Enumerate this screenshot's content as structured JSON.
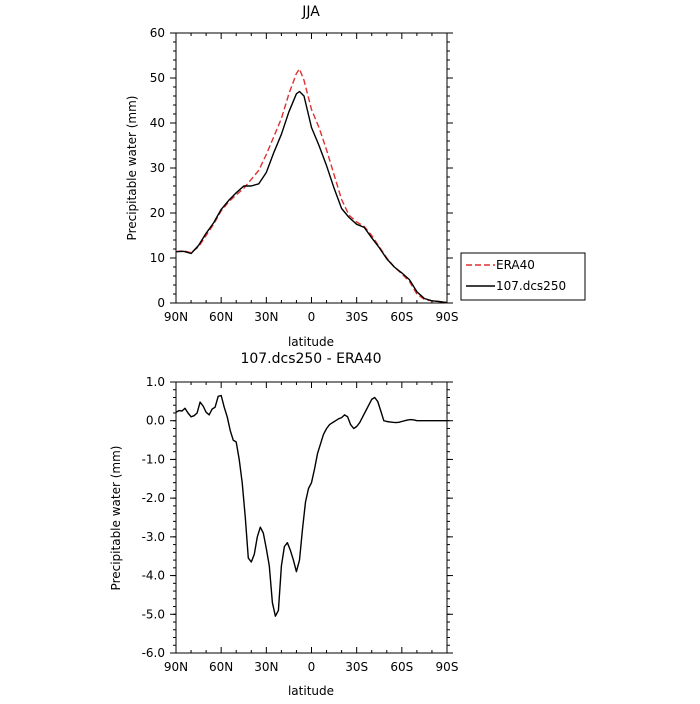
{
  "chart_data": [
    {
      "type": "line",
      "title": "JJA",
      "xlabel": "latitude",
      "ylabel": "Precipitable water (mm)",
      "xlim": [
        90,
        -90
      ],
      "ylim": [
        0,
        60
      ],
      "xticks": [
        90,
        60,
        30,
        0,
        -30,
        -60,
        -90
      ],
      "xtick_labels": [
        "90N",
        "60N",
        "30N",
        "0",
        "30S",
        "60S",
        "90S"
      ],
      "yticks": [
        0,
        10,
        20,
        30,
        40,
        50,
        60
      ],
      "ytick_labels": [
        "0",
        "10",
        "20",
        "30",
        "40",
        "50",
        "60"
      ],
      "grid": false,
      "legend_position": "outside-right",
      "series": [
        {
          "name": "ERA40",
          "color": "#e03030",
          "dash": "dashed",
          "x": [
            90,
            85,
            80,
            75,
            70,
            65,
            60,
            55,
            50,
            45,
            40,
            35,
            30,
            25,
            20,
            15,
            10,
            8,
            5,
            0,
            -5,
            -10,
            -15,
            -20,
            -25,
            -30,
            -35,
            -40,
            -45,
            -50,
            -55,
            -60,
            -65,
            -70,
            -75,
            -80,
            -85,
            -90
          ],
          "y": [
            11.4,
            11.6,
            11.2,
            12.5,
            15.0,
            17.5,
            20.5,
            22.5,
            24.0,
            25.5,
            27.5,
            29.5,
            33.0,
            37.0,
            41.0,
            46.5,
            51.0,
            52.0,
            49.5,
            43.0,
            39.0,
            34.0,
            28.5,
            23.0,
            19.5,
            18.0,
            17.0,
            15.0,
            12.5,
            10.0,
            8.0,
            6.5,
            4.8,
            2.0,
            0.8,
            0.5,
            0.3,
            0.1
          ]
        },
        {
          "name": "107.dcs250",
          "color": "#000000",
          "dash": "solid",
          "x": [
            90,
            85,
            80,
            75,
            70,
            65,
            60,
            55,
            50,
            45,
            40,
            35,
            30,
            25,
            20,
            15,
            10,
            8,
            5,
            0,
            -5,
            -10,
            -15,
            -20,
            -25,
            -30,
            -35,
            -40,
            -45,
            -50,
            -55,
            -60,
            -65,
            -70,
            -75,
            -80,
            -85,
            -90
          ],
          "y": [
            11.4,
            11.5,
            11.0,
            12.8,
            15.5,
            17.8,
            20.8,
            22.8,
            24.5,
            26.0,
            26.0,
            26.5,
            29.0,
            33.5,
            37.5,
            42.5,
            46.5,
            47.0,
            46.0,
            39.0,
            35.0,
            30.5,
            25.5,
            21.0,
            19.0,
            17.5,
            16.8,
            14.5,
            12.3,
            9.8,
            8.0,
            6.7,
            5.2,
            2.5,
            1.0,
            0.5,
            0.3,
            0.1
          ]
        }
      ]
    },
    {
      "type": "line",
      "title": "107.dcs250 - ERA40",
      "xlabel": "latitude",
      "ylabel": "Precipitable water (mm)",
      "xlim": [
        90,
        -90
      ],
      "ylim": [
        -6,
        1
      ],
      "xticks": [
        90,
        60,
        30,
        0,
        -30,
        -60,
        -90
      ],
      "xtick_labels": [
        "90N",
        "60N",
        "30N",
        "0",
        "30S",
        "60S",
        "90S"
      ],
      "yticks": [
        1,
        0,
        -1,
        -2,
        -3,
        -4,
        -5,
        -6
      ],
      "ytick_labels": [
        "1.0",
        "0.0",
        "-1.0",
        "-2.0",
        "-3.0",
        "-4.0",
        "-5.0",
        "-6.0"
      ],
      "grid": false,
      "series": [
        {
          "color": "#000000",
          "dash": "solid",
          "x": [
            90,
            88,
            86,
            84,
            82,
            80,
            78,
            76,
            74,
            72,
            70,
            68,
            66,
            64,
            62,
            60,
            58,
            56,
            54,
            52,
            50,
            48,
            46,
            44,
            42,
            40,
            38,
            36,
            34,
            32,
            30,
            28,
            26,
            24,
            22,
            20,
            18,
            16,
            14,
            12,
            10,
            8,
            6,
            4,
            2,
            0,
            -2,
            -4,
            -6,
            -8,
            -10,
            -12,
            -14,
            -16,
            -18,
            -20,
            -22,
            -24,
            -26,
            -28,
            -30,
            -32,
            -34,
            -36,
            -38,
            -40,
            -42,
            -44,
            -46,
            -48,
            -50,
            -52,
            -54,
            -56,
            -58,
            -60,
            -62,
            -64,
            -66,
            -68,
            -70,
            -72,
            -74,
            -76,
            -78,
            -80,
            -82,
            -84,
            -86,
            -88,
            -90
          ],
          "y": [
            0.22,
            0.26,
            0.25,
            0.32,
            0.2,
            0.1,
            0.13,
            0.2,
            0.48,
            0.38,
            0.22,
            0.15,
            0.3,
            0.35,
            0.63,
            0.65,
            0.35,
            0.1,
            -0.25,
            -0.5,
            -0.55,
            -1.0,
            -1.6,
            -2.5,
            -3.55,
            -3.65,
            -3.45,
            -3.0,
            -2.75,
            -2.9,
            -3.3,
            -3.75,
            -4.7,
            -5.05,
            -4.9,
            -3.75,
            -3.25,
            -3.15,
            -3.35,
            -3.6,
            -3.9,
            -3.6,
            -2.8,
            -2.1,
            -1.75,
            -1.6,
            -1.25,
            -0.85,
            -0.6,
            -0.35,
            -0.2,
            -0.1,
            -0.05,
            0.0,
            0.05,
            0.08,
            0.15,
            0.1,
            -0.1,
            -0.2,
            -0.15,
            -0.05,
            0.1,
            0.25,
            0.4,
            0.55,
            0.6,
            0.5,
            0.25,
            0.0,
            -0.02,
            -0.03,
            -0.04,
            -0.05,
            -0.04,
            -0.02,
            0.0,
            0.02,
            0.03,
            0.02,
            0.0,
            0.0,
            0.0,
            0.0,
            0.0,
            0.0,
            0.0,
            0.0,
            0.0,
            0.0,
            0.0
          ]
        }
      ]
    }
  ]
}
